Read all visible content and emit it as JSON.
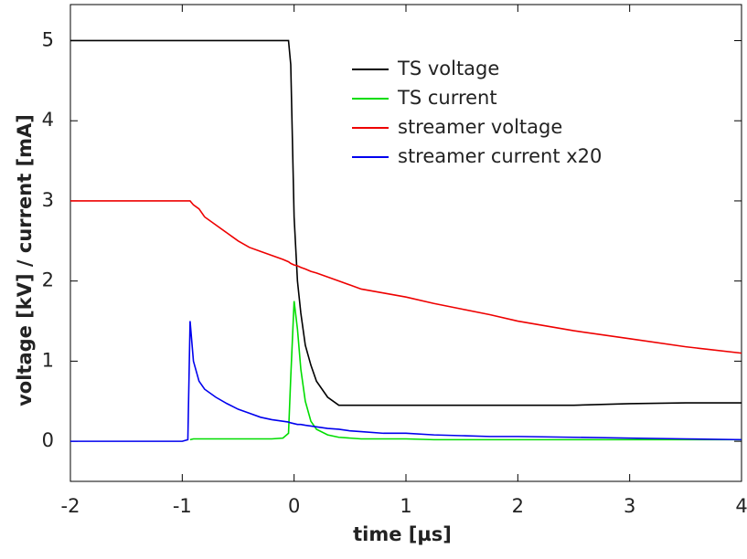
{
  "chart_data": {
    "type": "line",
    "xlabel": "time [µs]",
    "ylabel": "voltage [kV] / current [mA]",
    "x": [
      -2,
      -1.75,
      -1.5,
      -1.25,
      -1,
      -0.95,
      -0.93,
      -0.9,
      -0.85,
      -0.8,
      -0.7,
      -0.6,
      -0.5,
      -0.4,
      -0.3,
      -0.2,
      -0.1,
      -0.05,
      -0.03,
      0,
      0.03,
      0.06,
      0.1,
      0.15,
      0.2,
      0.3,
      0.4,
      0.5,
      0.6,
      0.8,
      1,
      1.25,
      1.5,
      1.75,
      2,
      2.5,
      3,
      3.5,
      4
    ],
    "series": [
      {
        "name": "TS voltage",
        "color": "#000000",
        "values": [
          5,
          5,
          5,
          5,
          5,
          5,
          5,
          5,
          5,
          5,
          5,
          5,
          5,
          5,
          5,
          5,
          5,
          5,
          4.7,
          2.8,
          2.0,
          1.6,
          1.2,
          0.95,
          0.75,
          0.55,
          0.45,
          0.45,
          0.45,
          0.45,
          0.45,
          0.45,
          0.45,
          0.45,
          0.45,
          0.45,
          0.47,
          0.48,
          0.48
        ]
      },
      {
        "name": "TS current",
        "color": "#00dd00",
        "values": [
          null,
          null,
          null,
          null,
          null,
          null,
          0.02,
          0.03,
          0.03,
          0.03,
          0.03,
          0.03,
          0.03,
          0.03,
          0.03,
          0.03,
          0.04,
          0.1,
          0.8,
          1.75,
          1.4,
          0.9,
          0.5,
          0.25,
          0.15,
          0.08,
          0.05,
          0.04,
          0.03,
          0.03,
          0.03,
          0.02,
          0.02,
          0.02,
          0.02,
          0.02,
          0.02,
          0.02,
          0.02
        ]
      },
      {
        "name": "streamer voltage",
        "color": "#ee0000",
        "values": [
          3.0,
          3.0,
          3.0,
          3.0,
          3.0,
          3.0,
          3.0,
          2.95,
          2.9,
          2.8,
          2.7,
          2.6,
          2.5,
          2.42,
          2.37,
          2.32,
          2.27,
          2.24,
          2.22,
          2.2,
          2.19,
          2.17,
          2.15,
          2.12,
          2.1,
          2.05,
          2.0,
          1.95,
          1.9,
          1.85,
          1.8,
          1.72,
          1.65,
          1.58,
          1.5,
          1.38,
          1.28,
          1.18,
          1.1
        ]
      },
      {
        "name": "streamer current x20",
        "color": "#0000ee",
        "values": [
          0,
          0,
          0,
          0,
          0,
          0.02,
          1.5,
          1.0,
          0.75,
          0.65,
          0.55,
          0.47,
          0.4,
          0.35,
          0.3,
          0.27,
          0.25,
          0.24,
          0.23,
          0.22,
          0.21,
          0.21,
          0.2,
          0.19,
          0.18,
          0.16,
          0.15,
          0.13,
          0.12,
          0.1,
          0.1,
          0.08,
          0.07,
          0.06,
          0.06,
          0.05,
          0.04,
          0.03,
          0.02
        ]
      }
    ],
    "xlim": [
      -2,
      4
    ],
    "xticks": [
      -2,
      -1,
      0,
      1,
      2,
      3,
      4
    ],
    "ylim": [
      -0.5,
      5.45
    ],
    "yticks": [
      0,
      1,
      2,
      3,
      4,
      5
    ],
    "grid": false,
    "legend": "upper right"
  }
}
